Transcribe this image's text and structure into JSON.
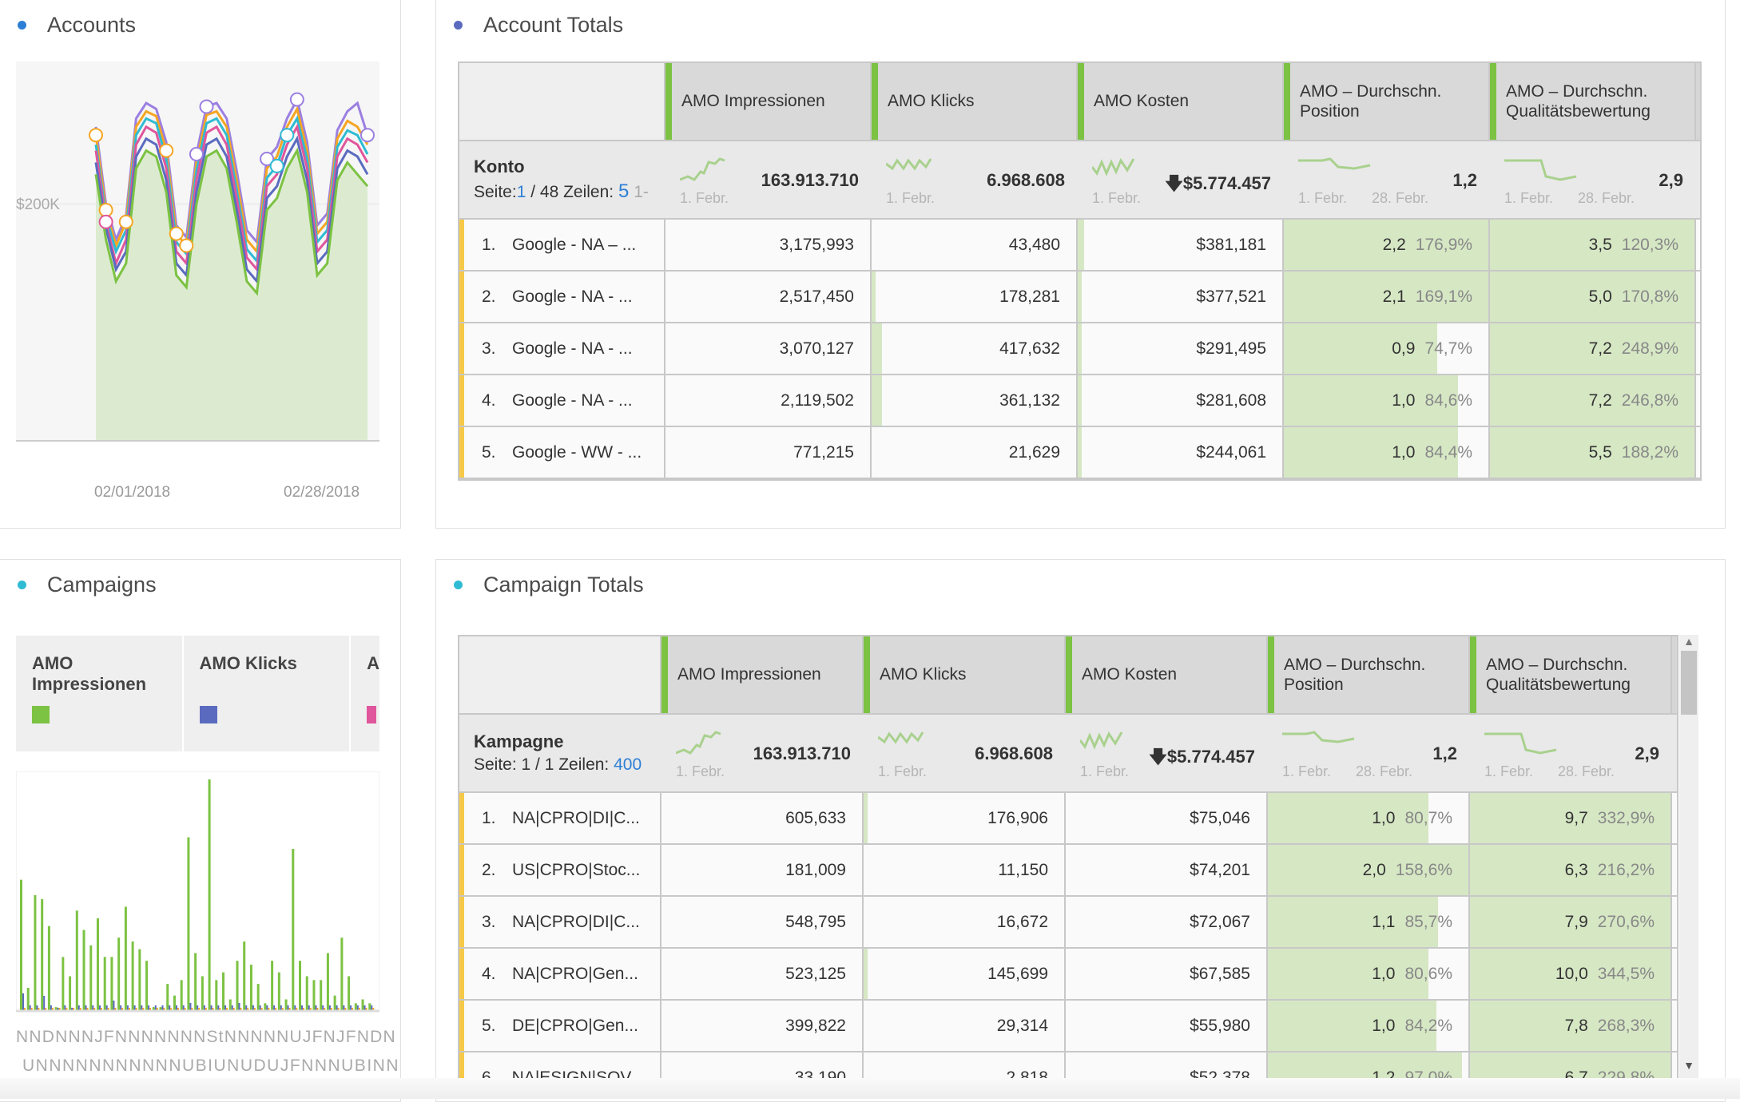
{
  "accounts_panel": {
    "title": "Accounts",
    "dot_color": "#2d7fd6",
    "y_tick": "$200K",
    "x_ticks": [
      "02/01/2018",
      "02/28/2018"
    ]
  },
  "chart_data": [
    {
      "type": "line",
      "title": "Accounts",
      "ylim": [
        0,
        320000
      ],
      "y_ticks": [
        "$200K"
      ],
      "x_ticks": [
        "02/01/2018",
        "02/28/2018"
      ],
      "x": [
        "02/01",
        "02/02",
        "02/03",
        "02/04",
        "02/05",
        "02/06",
        "02/07",
        "02/08",
        "02/09",
        "02/10",
        "02/11",
        "02/12",
        "02/13",
        "02/14",
        "02/15",
        "02/16",
        "02/17",
        "02/18",
        "02/19",
        "02/20",
        "02/21",
        "02/22",
        "02/23",
        "02/24",
        "02/25",
        "02/26",
        "02/27",
        "02/28"
      ],
      "series": [
        {
          "color": "#7cc243",
          "values": [
            225,
            170,
            135,
            150,
            230,
            245,
            240,
            210,
            140,
            130,
            200,
            240,
            245,
            230,
            185,
            135,
            125,
            195,
            205,
            230,
            245,
            210,
            140,
            150,
            220,
            235,
            225,
            215
          ]
        },
        {
          "color": "#5a6bbf",
          "values": [
            235,
            180,
            145,
            160,
            240,
            255,
            250,
            220,
            150,
            140,
            210,
            250,
            255,
            240,
            195,
            145,
            135,
            205,
            215,
            240,
            255,
            220,
            150,
            160,
            230,
            245,
            240,
            225
          ]
        },
        {
          "color": "#e0569c",
          "values": [
            245,
            185,
            150,
            170,
            250,
            265,
            260,
            230,
            160,
            150,
            220,
            260,
            265,
            250,
            205,
            155,
            145,
            215,
            225,
            250,
            265,
            230,
            160,
            170,
            240,
            255,
            250,
            235
          ]
        },
        {
          "color": "#2fbbd3",
          "values": [
            250,
            190,
            160,
            178,
            258,
            272,
            268,
            238,
            168,
            158,
            228,
            268,
            272,
            258,
            212,
            162,
            152,
            222,
            232,
            258,
            272,
            238,
            168,
            178,
            248,
            262,
            258,
            242
          ]
        },
        {
          "color": "#f5a623",
          "values": [
            258,
            195,
            165,
            185,
            265,
            278,
            274,
            245,
            175,
            165,
            235,
            275,
            278,
            265,
            220,
            170,
            160,
            230,
            240,
            265,
            280,
            245,
            175,
            185,
            255,
            270,
            265,
            250
          ]
        },
        {
          "color": "#9b7fe0",
          "values": [
            265,
            200,
            170,
            190,
            272,
            285,
            280,
            252,
            182,
            172,
            242,
            282,
            285,
            272,
            228,
            178,
            168,
            238,
            248,
            272,
            288,
            252,
            182,
            192,
            262,
            278,
            285,
            258
          ]
        }
      ]
    },
    {
      "type": "bar",
      "title": "Campaigns",
      "legend": [
        "AMO Impressionen",
        "AMO Klicks",
        "A"
      ],
      "x_tick_row1": "NNDNNNJFNNNNNNNStNNNNNUJFNJFNDN",
      "x_tick_row2": "UNNNNNNNNNNNUBIUNUDUJFNNNUBINN",
      "series": [
        {
          "name": "AMO Impressionen",
          "color": "#7cc243",
          "values": [
            34,
            6,
            30,
            29,
            22,
            1,
            14,
            9,
            26,
            21,
            17,
            24,
            14,
            14,
            19,
            27,
            18,
            16,
            13,
            1,
            1,
            7,
            4,
            8,
            45,
            15,
            9,
            60,
            8,
            10,
            3,
            13,
            18,
            12,
            7,
            2,
            13,
            10,
            3,
            42,
            13,
            9,
            8,
            8,
            15,
            4,
            19,
            9,
            2,
            3,
            2
          ]
        },
        {
          "name": "AMO Klicks",
          "color": "#5a6bbf",
          "values": [
            6,
            1,
            1,
            5,
            1,
            0,
            1,
            0,
            1,
            1,
            1,
            1,
            1,
            3,
            1,
            1,
            1,
            1,
            1,
            1,
            1,
            1,
            1,
            1,
            2,
            1,
            1,
            1,
            1,
            1,
            1,
            2,
            1,
            1,
            1,
            1,
            1,
            1,
            1,
            1,
            1,
            1,
            1,
            1,
            1,
            1,
            1,
            1,
            1,
            1,
            1
          ]
        }
      ]
    }
  ],
  "campaigns_panel": {
    "title": "Campaigns",
    "dot_color": "#2fbbd3",
    "legend": [
      {
        "label": "AMO Impressionen",
        "color": "#7cc243"
      },
      {
        "label": "AMO Klicks",
        "color": "#5a6bbf"
      },
      {
        "label": "A",
        "color": "#e0569c"
      }
    ]
  },
  "account_totals": {
    "title": "Account Totals",
    "dot_color": "#5a6bbf",
    "columns": [
      "AMO Impressionen",
      "AMO Klicks",
      "AMO Kosten",
      "AMO – Durchschn. Position",
      "AMO – Durchschn. Qualitätsbewertung"
    ],
    "summary": {
      "label": "Konto",
      "page_label": "Seite:",
      "page": "1",
      "page_total": "/ 48 Zeilen:",
      "rows": "5",
      "rest": "1-",
      "values": [
        "163.913.710",
        "6.968.608",
        "$5.774.457",
        "1,2",
        "2,9"
      ],
      "down_arrow": "🡇",
      "date_start": "1. Febr.",
      "date_end": "28. Febr."
    },
    "rows": [
      {
        "idx": "1.",
        "name": "Google - NA – ...",
        "imp": "3,175,993",
        "clk": "43,480",
        "cost": "$381,181",
        "pos": "2,2",
        "pos_pct": "176,9%",
        "q": "3,5",
        "q_pct": "120,3%",
        "posf": 1,
        "qf": 1,
        "cf": 0.03,
        "kf": 0
      },
      {
        "idx": "2.",
        "name": "Google - NA - ...",
        "imp": "2,517,450",
        "clk": "178,281",
        "cost": "$377,521",
        "pos": "2,1",
        "pos_pct": "169,1%",
        "q": "5,0",
        "q_pct": "170,8%",
        "posf": 1,
        "qf": 1,
        "cf": 0.02,
        "kf": 0.02
      },
      {
        "idx": "3.",
        "name": "Google - NA - ...",
        "imp": "3,070,127",
        "clk": "417,632",
        "cost": "$291,495",
        "pos": "0,9",
        "pos_pct": "74,7%",
        "q": "7,2",
        "q_pct": "248,9%",
        "posf": 0.75,
        "qf": 1,
        "cf": 0.02,
        "kf": 0.05
      },
      {
        "idx": "4.",
        "name": "Google - NA - ...",
        "imp": "2,119,502",
        "clk": "361,132",
        "cost": "$281,608",
        "pos": "1,0",
        "pos_pct": "84,6%",
        "q": "7,2",
        "q_pct": "246,8%",
        "posf": 0.85,
        "qf": 1,
        "cf": 0.02,
        "kf": 0.05
      },
      {
        "idx": "5.",
        "name": "Google - WW - ...",
        "imp": "771,215",
        "clk": "21,629",
        "cost": "$244,061",
        "pos": "1,0",
        "pos_pct": "84,4%",
        "q": "5,5",
        "q_pct": "188,2%",
        "posf": 0.85,
        "qf": 1,
        "cf": 0.02,
        "kf": 0
      }
    ]
  },
  "campaign_totals": {
    "title": "Campaign Totals",
    "dot_color": "#2fbbd3",
    "columns": [
      "AMO Impressionen",
      "AMO Klicks",
      "AMO Kosten",
      "AMO – Durchschn. Position",
      "AMO – Durchschn. Qualitätsbewertung"
    ],
    "summary": {
      "label": "Kampagne",
      "page_label": "Seite: 1 / 1 Zeilen:",
      "rows": "400",
      "values": [
        "163.913.710",
        "6.968.608",
        "$5.774.457",
        "1,2",
        "2,9"
      ],
      "down_arrow": "🡇",
      "date_start": "1. Febr.",
      "date_end": "28. Febr."
    },
    "rows": [
      {
        "idx": "1.",
        "name": "NA|CPRO|DI|C...",
        "imp": "605,633",
        "clk": "176,906",
        "cost": "$75,046",
        "pos": "1,0",
        "pos_pct": "80,7%",
        "q": "9,7",
        "q_pct": "332,9%",
        "posf": 0.8,
        "qf": 1,
        "cf": 0,
        "kf": 0.02
      },
      {
        "idx": "2.",
        "name": "US|CPRO|Stoc...",
        "imp": "181,009",
        "clk": "11,150",
        "cost": "$74,201",
        "pos": "2,0",
        "pos_pct": "158,6%",
        "q": "6,3",
        "q_pct": "216,2%",
        "posf": 1,
        "qf": 1,
        "cf": 0,
        "kf": 0
      },
      {
        "idx": "3.",
        "name": "NA|CPRO|DI|C...",
        "imp": "548,795",
        "clk": "16,672",
        "cost": "$72,067",
        "pos": "1,1",
        "pos_pct": "85,7%",
        "q": "7,9",
        "q_pct": "270,6%",
        "posf": 0.85,
        "qf": 1,
        "cf": 0,
        "kf": 0
      },
      {
        "idx": "4.",
        "name": "NA|CPRO|Gen...",
        "imp": "523,125",
        "clk": "145,699",
        "cost": "$67,585",
        "pos": "1,0",
        "pos_pct": "80,6%",
        "q": "10,0",
        "q_pct": "344,5%",
        "posf": 0.8,
        "qf": 1,
        "cf": 0,
        "kf": 0.02
      },
      {
        "idx": "5.",
        "name": "DE|CPRO|Gen...",
        "imp": "399,822",
        "clk": "29,314",
        "cost": "$55,980",
        "pos": "1,0",
        "pos_pct": "84,2%",
        "q": "7,8",
        "q_pct": "268,3%",
        "posf": 0.84,
        "qf": 1,
        "cf": 0,
        "kf": 0
      },
      {
        "idx": "6.",
        "name": "NA|ESIGN|SOV...",
        "imp": "33,190",
        "clk": "2,818",
        "cost": "$52,378",
        "pos": "1,2",
        "pos_pct": "97,0%",
        "q": "6,7",
        "q_pct": "229,8%",
        "posf": 0.97,
        "qf": 1,
        "cf": 0,
        "kf": 0
      }
    ]
  }
}
